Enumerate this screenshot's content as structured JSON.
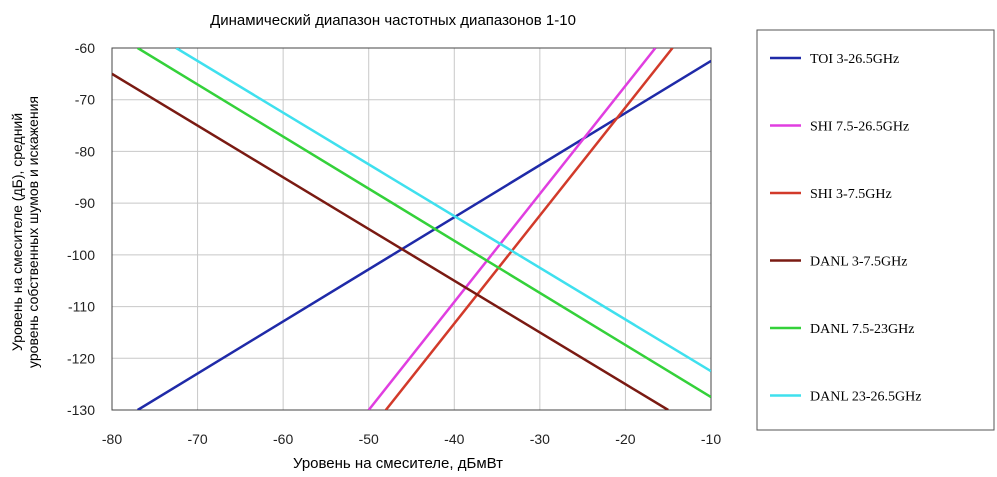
{
  "chart_data": {
    "type": "line",
    "title": "Динамический диапазон частотных диапазонов 1-10",
    "xlabel": "Уровень на смесителе, дБмВт",
    "ylabel_line1": "Уровень на смесителе (дБ), средний",
    "ylabel_line2": "уровень собственных шумов и искажения",
    "xlim": [
      -80,
      -10
    ],
    "ylim": [
      -130,
      -60
    ],
    "x_ticks": [
      -80,
      -70,
      -60,
      -50,
      -40,
      -30,
      -20,
      -10
    ],
    "y_ticks": [
      -60,
      -70,
      -80,
      -90,
      -100,
      -110,
      -120,
      -130
    ],
    "x_tick_labels": [
      "-80",
      "-70",
      "-60",
      "-50",
      "-40",
      "-30",
      "-20",
      "-10"
    ],
    "y_tick_labels": [
      "-60",
      "-70",
      "-80",
      "-90",
      "-100",
      "-110",
      "-120",
      "-130"
    ],
    "grid": true,
    "legend_position": "right",
    "series": [
      {
        "name": "TOI 3-26.5GHz",
        "color": "#1f2aa8",
        "x": [
          -77,
          -10
        ],
        "y": [
          -130,
          -62.5
        ]
      },
      {
        "name": "SHI 7.5-26.5GHz",
        "color": "#e03ee0",
        "x": [
          -50,
          -16.5
        ],
        "y": [
          -130,
          -60
        ]
      },
      {
        "name": "SHI 3-7.5GHz",
        "color": "#d23a2a",
        "x": [
          -48,
          -14.5
        ],
        "y": [
          -130,
          -60
        ]
      },
      {
        "name": "DANL 3-7.5GHz",
        "color": "#7a1a12",
        "x": [
          -80,
          -15
        ],
        "y": [
          -65,
          -130
        ]
      },
      {
        "name": "DANL 7.5-23GHz",
        "color": "#34d13a",
        "x": [
          -77,
          -10
        ],
        "y": [
          -60,
          -127.5
        ]
      },
      {
        "name": "DANL 23-26.5GHz",
        "color": "#3fe0ee",
        "x": [
          -72.5,
          -10
        ],
        "y": [
          -60,
          -122.5
        ]
      }
    ]
  }
}
